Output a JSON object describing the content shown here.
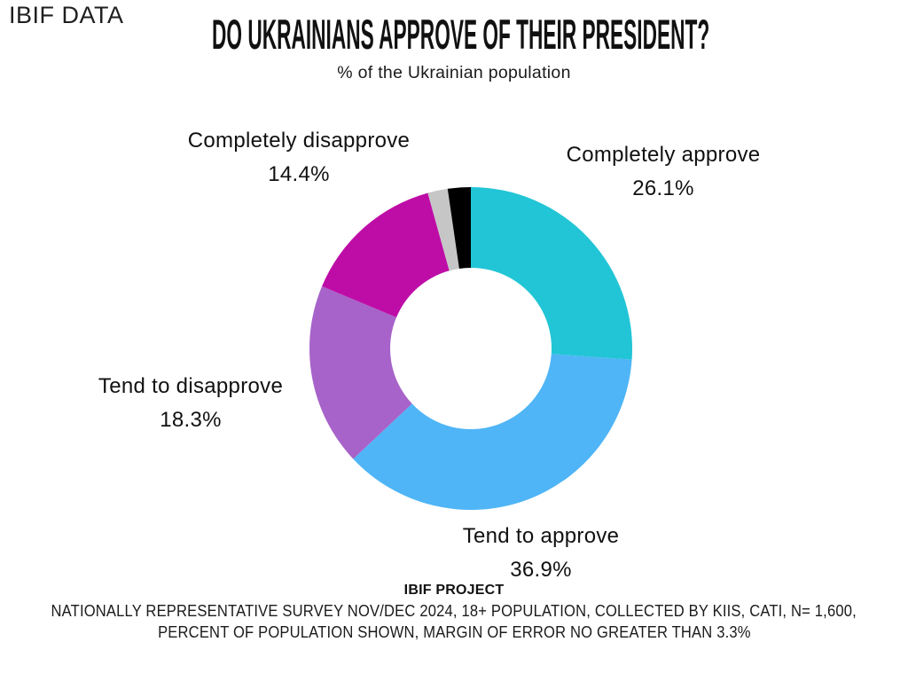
{
  "brand": {
    "logo": "IBIF DATA"
  },
  "header": {
    "title": "DO UKRAINIANS APPROVE OF THEIR PRESIDENT?",
    "subtitle": "% of the Ukrainian population"
  },
  "chart_data": {
    "type": "pie",
    "subtype": "donut",
    "title": "DO UKRAINIANS APPROVE OF THEIR PRESIDENT?",
    "subtitle": "% of the Ukrainian population",
    "units": "percent of population",
    "direction": "clockwise",
    "start_angle_deg": 0,
    "inner_radius_ratio": 0.5,
    "legend_position": "none",
    "segments": [
      {
        "label": "Completely approve",
        "value": 26.1,
        "value_label": "26.1%",
        "color": "#22c5d6"
      },
      {
        "label": "Tend to approve",
        "value": 36.9,
        "value_label": "36.9%",
        "color": "#4fb5f6"
      },
      {
        "label": "Tend to disapprove",
        "value": 18.3,
        "value_label": "18.3%",
        "color": "#a763c9"
      },
      {
        "label": "Completely disapprove",
        "value": 14.4,
        "value_label": "14.4%",
        "color": "#be0da7"
      },
      {
        "label": "",
        "value": 2.0,
        "value_label": "",
        "color": "#c6c6c6"
      },
      {
        "label": "",
        "value": 2.3,
        "value_label": "",
        "color": "#000000"
      }
    ]
  },
  "footer": {
    "project": "IBIF PROJECT",
    "note_line1": "NATIONALLY REPRESENTATIVE SURVEY NOV/DEC 2024, 18+ POPULATION, COLLECTED BY KIIS, CATI, N= 1,600,",
    "note_line2": "PERCENT OF POPULATION SHOWN, MARGIN OF ERROR NO GREATER THAN 3.3%"
  }
}
